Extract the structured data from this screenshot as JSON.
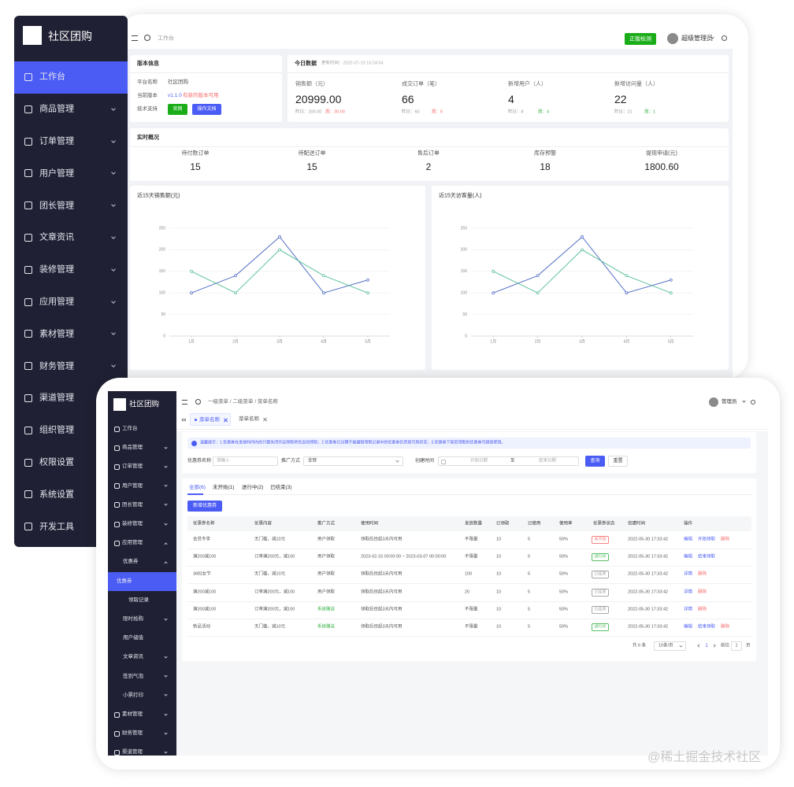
{
  "back": {
    "sidebar": {
      "logo": "社区团购",
      "active": 0,
      "menu": [
        "工作台",
        "商品管理",
        "订单管理",
        "用户管理",
        "团长管理",
        "文章资讯",
        "装修管理",
        "应用管理",
        "素材管理",
        "财务管理",
        "渠道管理",
        "组织管理",
        "权限设置",
        "系统设置",
        "开发工具"
      ]
    },
    "header": {
      "breadcrumb": "工作台",
      "button": "正版检测",
      "user": "超级管理员"
    },
    "version": {
      "title": "版本信息",
      "name_label": "平台名称",
      "name": "社区团购",
      "version_label": "当前版本",
      "version": "v1.1.0",
      "version_note": "有新的版本可用",
      "support_label": "技术支持",
      "buttons": [
        "官网",
        "操作文档"
      ]
    },
    "today": {
      "title": "今日数据",
      "updated": "更新时间：2022-07-19 16:24:54",
      "stats": [
        {
          "label": "销售额（元）",
          "value": "20999.00",
          "yesterday": "昨日：200.00",
          "change": "周：30.00",
          "change_color": "#f56c6c"
        },
        {
          "label": "成交订单（笔）",
          "value": "66",
          "yesterday": "昨日：60",
          "change": "周：5",
          "change_color": "#f56c6c"
        },
        {
          "label": "新增用户（人）",
          "value": "4",
          "yesterday": "昨日：8",
          "change": "周：4",
          "change_color": "#3bb54a"
        },
        {
          "label": "新增访问量（人）",
          "value": "22",
          "yesterday": "昨日：21",
          "change": "周：1",
          "change_color": "#3bb54a"
        }
      ]
    },
    "realtime": {
      "title": "实时概况",
      "stats": [
        {
          "label": "待付款订单",
          "value": "15"
        },
        {
          "label": "待配送订单",
          "value": "15"
        },
        {
          "label": "售后订单",
          "value": "2"
        },
        {
          "label": "库存预警",
          "value": "18"
        },
        {
          "label": "提现申请(元)",
          "value": "1800.60"
        }
      ]
    },
    "charts": [
      {
        "type": "line",
        "title": "近15天销售额(元)",
        "categories": [
          "1月",
          "2月",
          "3月",
          "4月",
          "5月"
        ],
        "ylim": [
          0,
          250
        ],
        "yticks": [
          0,
          50,
          100,
          150,
          200,
          250
        ],
        "grid": true,
        "series": [
          {
            "color": "#5470c6",
            "values": [
              100,
              140,
              230,
              100,
              130
            ]
          },
          {
            "color": "#5cc19b",
            "values": [
              150,
              100,
              200,
              140,
              100
            ]
          }
        ]
      },
      {
        "type": "line",
        "title": "近15天访客量(人)",
        "categories": [
          "1月",
          "2月",
          "3月",
          "4月",
          "5月"
        ],
        "ylim": [
          0,
          250
        ],
        "yticks": [
          0,
          50,
          100,
          150,
          200,
          250
        ],
        "grid": true,
        "series": [
          {
            "color": "#5470c6",
            "values": [
              100,
              140,
              230,
              100,
              130
            ]
          },
          {
            "color": "#5cc19b",
            "values": [
              150,
              100,
              200,
              140,
              100
            ]
          }
        ]
      }
    ]
  },
  "front": {
    "sidebar": {
      "logo": "社区团购",
      "menu": [
        {
          "label": "工作台",
          "level": 0,
          "arrow": null
        },
        {
          "label": "商品管理",
          "level": 0,
          "arrow": "down"
        },
        {
          "label": "订单管理",
          "level": 0,
          "arrow": "down"
        },
        {
          "label": "用户管理",
          "level": 0,
          "arrow": "down"
        },
        {
          "label": "团长管理",
          "level": 0,
          "arrow": "down"
        },
        {
          "label": "装修管理",
          "level": 0,
          "arrow": "down"
        },
        {
          "label": "应用管理",
          "level": 0,
          "arrow": "up"
        },
        {
          "label": "优惠券",
          "level": 1,
          "arrow": "up"
        },
        {
          "label": "优惠券",
          "level": 2,
          "arrow": null,
          "active": true
        },
        {
          "label": "领取记录",
          "level": 2,
          "arrow": null
        },
        {
          "label": "限时抢购",
          "level": 1,
          "arrow": "down"
        },
        {
          "label": "用户储值",
          "level": 1,
          "arrow": null
        },
        {
          "label": "文章资讯",
          "level": 1,
          "arrow": "down"
        },
        {
          "label": "签到气泡",
          "level": 1,
          "arrow": "down"
        },
        {
          "label": "小票打印",
          "level": 1,
          "arrow": "down"
        },
        {
          "label": "素材管理",
          "level": 0,
          "arrow": "down"
        },
        {
          "label": "财务管理",
          "level": 0,
          "arrow": "down"
        },
        {
          "label": "渠道管理",
          "level": 0,
          "arrow": "down"
        }
      ]
    },
    "header": {
      "breadcrumb": "一级菜单 / 二级菜单 / 菜单名称",
      "user": "管理员",
      "tabs": [
        "菜单名称",
        "菜单名称"
      ]
    },
    "notice": "温馨提示：1.优惠券在发放时间内的只要关闭开启领取将会自动领取；2.优惠券已过期不能编辑领取记录中的优惠券仍然是可用状态；3.优惠券下架后领取的优惠券可继续使用。",
    "filters": {
      "name_label": "优惠券名称",
      "name_placeholder": "请输入",
      "promo_label": "推广方式",
      "promo_value": "全部",
      "time_label": "创建时间",
      "time_start": "开始日期",
      "time_to": "至",
      "time_end": "结束日期",
      "search": "查询",
      "reset": "重置"
    },
    "tabs": [
      "全部(6)",
      "未开始(1)",
      "进行中(2)",
      "已结束(3)"
    ],
    "add_button": "新增优惠券",
    "table": {
      "columns": [
        "优惠券名称",
        "优惠内容",
        "推广方式",
        "使用时间",
        "发放数量",
        "已领取",
        "已使用",
        "使用率",
        "优惠券状态",
        "创建时间",
        "操作"
      ],
      "rows": [
        {
          "cells": [
            "会员专享",
            "无门槛，减10元",
            "用户领取",
            "领取后目起3天内可用",
            "不限量",
            "10",
            "5",
            "50%",
            "未开始",
            "2022-05-30 17:33:42"
          ],
          "status_color": "#f56c6c",
          "promo_color": "#555",
          "ops": [
            {
              "text": "编辑",
              "color": "#4b5cf5"
            },
            {
              "text": "开始领取",
              "color": "#4b5cf5"
            },
            {
              "text": "删除",
              "color": "#f56c6c"
            }
          ]
        },
        {
          "cells": [
            "满200减100",
            "订单满200元，减100",
            "用户领取",
            "2023-02-15 00:00:00 ~ 2023-03-07 00:00:00",
            "不限量",
            "10",
            "5",
            "50%",
            "进行中",
            "2022-05-30 17:33:42"
          ],
          "status_color": "#3bb54a",
          "promo_color": "#555",
          "ops": [
            {
              "text": "编辑",
              "color": "#4b5cf5"
            },
            {
              "text": "结束领取",
              "color": "#4b5cf5"
            }
          ]
        },
        {
          "cells": [
            "38妇女节",
            "无门槛，减10元",
            "用户领取",
            "领取后目起3天内可用",
            "100",
            "10",
            "5",
            "50%",
            "已结束",
            "2022-05-30 17:33:42"
          ],
          "status_color": "#999999",
          "promo_color": "#555",
          "ops": [
            {
              "text": "详情",
              "color": "#4b5cf5"
            },
            {
              "text": "删除",
              "color": "#f56c6c"
            }
          ]
        },
        {
          "cells": [
            "满200减100",
            "订单满200元，减100",
            "用户领取",
            "领取后目起3天内可用",
            "20",
            "10",
            "5",
            "50%",
            "已结束",
            "2022-05-30 17:33:42"
          ],
          "status_color": "#999999",
          "promo_color": "#555",
          "ops": [
            {
              "text": "详情",
              "color": "#4b5cf5"
            },
            {
              "text": "删除",
              "color": "#f56c6c"
            }
          ]
        },
        {
          "cells": [
            "满200减100",
            "订单满200元，减100",
            "系统赠送",
            "领取后目起3天内可用",
            "不限量",
            "10",
            "5",
            "50%",
            "已结束",
            "2022-05-30 17:33:42"
          ],
          "status_color": "#999999",
          "promo_color": "#3bb54a",
          "ops": [
            {
              "text": "详情",
              "color": "#4b5cf5"
            },
            {
              "text": "删除",
              "color": "#f56c6c"
            }
          ]
        },
        {
          "cells": [
            "新品活动",
            "无门槛，减10元",
            "系统赠送",
            "领取后目起3天内可用",
            "不限量",
            "10",
            "5",
            "50%",
            "进行中",
            "2022-05-30 17:33:42"
          ],
          "status_color": "#3bb54a",
          "promo_color": "#3bb54a",
          "ops": [
            {
              "text": "编辑",
              "color": "#4b5cf5"
            },
            {
              "text": "结束领取",
              "color": "#4b5cf5"
            },
            {
              "text": "删除",
              "color": "#f56c6c"
            }
          ]
        }
      ]
    },
    "pagination": {
      "total": "共 6 条",
      "size": "10条/页",
      "page": "1",
      "goto": "前往",
      "goto_value": "1",
      "unit": "页"
    }
  },
  "watermark": "@稀土掘金技术社区"
}
